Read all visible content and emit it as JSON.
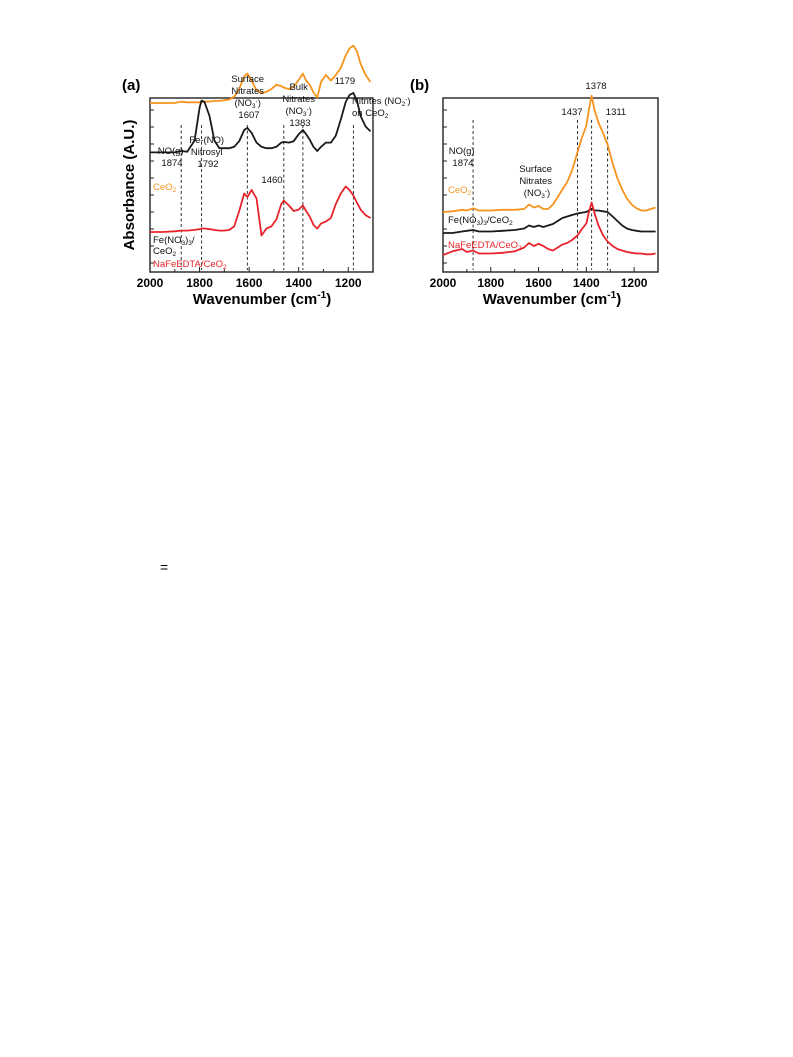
{
  "colors": {
    "CeO2": "#f7941d",
    "FeNO3": "#1a1a1a",
    "NaFeEDTA": "#e8242b"
  },
  "panels": [
    {
      "label": "(a)",
      "xlabel": "Wavenumber (cm-1)",
      "ylabel": "Absorbance (A.U.)",
      "ticks": [
        "2000",
        "1800",
        "1600",
        "1400",
        "1200"
      ],
      "annotations": [
        {
          "lines": [
            "NO(g)",
            "1874"
          ]
        },
        {
          "lines": [
            "Fe-(NO)",
            "Nitrosyl",
            "1792"
          ]
        },
        {
          "lines": [
            "Surface",
            "Nitrates",
            "(NO3-)",
            "1607"
          ]
        },
        {
          "lines": [
            "1460"
          ]
        },
        {
          "lines": [
            "Bulk",
            "Nitrates",
            "(NO3-)",
            "1383"
          ]
        },
        {
          "lines": [
            "1179"
          ]
        },
        {
          "lines": [
            "Nitrites (NO2-)",
            "on CeO2"
          ]
        }
      ],
      "series_labels": {
        "CeO2": "CeO2",
        "FeNO3": "Fe(NO3)3/",
        "FeNO3_b": "CeO2",
        "NaFeEDTA": "NaFeEDTA/CeO2"
      }
    },
    {
      "label": "(b)",
      "xlabel": "Wavenumber (cm-1)",
      "ticks": [
        "2000",
        "1800",
        "1600",
        "1400",
        "1200"
      ],
      "annotations": [
        {
          "lines": [
            "NO(g)",
            "1874"
          ]
        },
        {
          "lines": [
            "Surface",
            "Nitrates",
            "(NO3-)"
          ]
        },
        {
          "lines": [
            "1437"
          ]
        },
        {
          "lines": [
            "1378"
          ]
        },
        {
          "lines": [
            "1311"
          ]
        }
      ],
      "series_labels": {
        "CeO2": "CeO2",
        "FeNO3": "Fe(NO3)3/CeO2",
        "NaFeEDTA": "NaFeEDTA/CeO2"
      }
    }
  ],
  "stray_mark": "=",
  "chart_data": [
    {
      "type": "line",
      "title": "(a)",
      "xlabel": "Wavenumber (cm-1)",
      "ylabel": "Absorbance (A.U.)",
      "xlim": [
        2000,
        1100
      ],
      "x_ticks": [
        2000,
        1800,
        1600,
        1400,
        1200
      ],
      "reference_lines": [
        1874,
        1792,
        1607,
        1460,
        1383,
        1179
      ],
      "x": [
        2000,
        1950,
        1900,
        1874,
        1850,
        1820,
        1800,
        1792,
        1780,
        1760,
        1740,
        1720,
        1700,
        1680,
        1660,
        1640,
        1620,
        1607,
        1590,
        1570,
        1550,
        1530,
        1510,
        1490,
        1470,
        1460,
        1440,
        1420,
        1400,
        1383,
        1370,
        1355,
        1340,
        1325,
        1310,
        1290,
        1270,
        1250,
        1230,
        1210,
        1195,
        1179,
        1165,
        1150,
        1130,
        1110
      ],
      "series": [
        {
          "name": "CeO2",
          "values": [
            0.0,
            0.0,
            0.0,
            0.02,
            0.01,
            0.01,
            0.01,
            0.01,
            0.02,
            0.02,
            0.03,
            0.03,
            0.04,
            0.05,
            0.09,
            0.2,
            0.38,
            0.42,
            0.32,
            0.18,
            0.14,
            0.16,
            0.2,
            0.26,
            0.24,
            0.22,
            0.2,
            0.23,
            0.33,
            0.42,
            0.32,
            0.26,
            0.15,
            0.08,
            0.3,
            0.4,
            0.32,
            0.4,
            0.5,
            0.68,
            0.78,
            0.82,
            0.74,
            0.56,
            0.4,
            0.3
          ]
        },
        {
          "name": "Fe(NO3)3/CeO2",
          "values": [
            -0.02,
            -0.02,
            -0.02,
            -0.0,
            -0.01,
            0.15,
            0.62,
            0.72,
            0.7,
            0.5,
            0.15,
            0.04,
            0.04,
            0.04,
            0.06,
            0.14,
            0.3,
            0.33,
            0.26,
            0.12,
            0.06,
            0.04,
            0.04,
            0.06,
            0.12,
            0.13,
            0.12,
            0.14,
            0.24,
            0.3,
            0.24,
            0.16,
            0.06,
            0.0,
            0.06,
            0.12,
            0.12,
            0.22,
            0.45,
            0.7,
            0.8,
            0.83,
            0.72,
            0.5,
            0.35,
            0.28
          ]
        },
        {
          "name": "NaFeEDTA/CeO2",
          "values": [
            0.0,
            0.0,
            0.01,
            0.02,
            0.02,
            0.03,
            0.04,
            0.05,
            0.05,
            0.04,
            0.03,
            0.02,
            0.02,
            0.03,
            0.08,
            0.3,
            0.55,
            0.5,
            0.6,
            0.48,
            -0.05,
            0.05,
            0.08,
            0.18,
            0.4,
            0.45,
            0.38,
            0.3,
            0.32,
            0.38,
            0.3,
            0.22,
            0.1,
            0.05,
            0.12,
            0.15,
            0.2,
            0.4,
            0.55,
            0.65,
            0.6,
            0.52,
            0.42,
            0.32,
            0.24,
            0.2
          ]
        }
      ]
    },
    {
      "type": "line",
      "title": "(b)",
      "xlabel": "Wavenumber (cm-1)",
      "xlim": [
        2000,
        1100
      ],
      "x_ticks": [
        2000,
        1800,
        1600,
        1400,
        1200
      ],
      "reference_lines": [
        1874,
        1437,
        1378,
        1311
      ],
      "x": [
        2000,
        1960,
        1920,
        1900,
        1874,
        1850,
        1800,
        1750,
        1700,
        1660,
        1640,
        1620,
        1600,
        1580,
        1560,
        1540,
        1520,
        1500,
        1480,
        1460,
        1437,
        1420,
        1400,
        1390,
        1378,
        1365,
        1350,
        1330,
        1311,
        1290,
        1270,
        1250,
        1230,
        1210,
        1190,
        1170,
        1150,
        1130,
        1110
      ],
      "series": [
        {
          "name": "CeO2",
          "values": [
            0.0,
            0.01,
            0.03,
            0.02,
            0.05,
            0.02,
            0.02,
            0.03,
            0.03,
            0.04,
            0.1,
            0.06,
            0.08,
            0.04,
            0.04,
            0.1,
            0.2,
            0.3,
            0.4,
            0.55,
            0.8,
            0.98,
            1.15,
            1.35,
            1.55,
            1.35,
            1.2,
            1.05,
            0.9,
            0.65,
            0.45,
            0.3,
            0.18,
            0.1,
            0.05,
            0.02,
            0.02,
            0.04,
            0.06
          ]
        },
        {
          "name": "Fe(NO3)3/CeO2",
          "values": [
            0.0,
            0.0,
            0.02,
            0.03,
            0.04,
            0.02,
            0.02,
            0.03,
            0.04,
            0.06,
            0.1,
            0.08,
            0.1,
            0.08,
            0.1,
            0.12,
            0.16,
            0.2,
            0.22,
            0.24,
            0.26,
            0.27,
            0.28,
            0.3,
            0.32,
            0.3,
            0.3,
            0.29,
            0.28,
            0.22,
            0.16,
            0.1,
            0.06,
            0.04,
            0.03,
            0.02,
            0.02,
            0.02,
            0.02
          ]
        },
        {
          "name": "NaFeEDTA/CeO2",
          "values": [
            0.0,
            0.05,
            0.08,
            0.04,
            0.06,
            0.02,
            0.02,
            0.03,
            0.05,
            0.1,
            0.16,
            0.12,
            0.15,
            0.12,
            0.08,
            0.06,
            0.1,
            0.14,
            0.16,
            0.2,
            0.26,
            0.34,
            0.42,
            0.56,
            0.7,
            0.55,
            0.4,
            0.26,
            0.18,
            0.12,
            0.08,
            0.06,
            0.04,
            0.03,
            0.02,
            0.02,
            0.01,
            0.01,
            0.02
          ]
        }
      ]
    }
  ]
}
